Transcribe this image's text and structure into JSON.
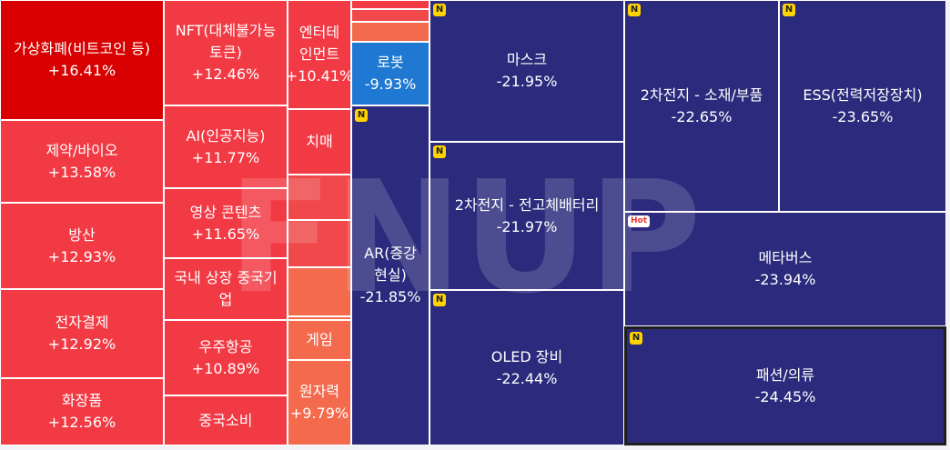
{
  "sectors": [
    {
      "name": "가상화폐(비트코인 등)",
      "pct": "+16.41%",
      "color": "#d80000"
    },
    {
      "name": "제약/바이오",
      "pct": "+13.58%",
      "color": "#f23a44"
    },
    {
      "name": "방산",
      "pct": "+12.93%",
      "color": "#f23a44"
    },
    {
      "name": "전자결제",
      "pct": "+12.92%",
      "color": "#f23a44"
    },
    {
      "name": "화장품",
      "pct": "+12.56%",
      "color": "#f23a44"
    },
    {
      "name": "NFT(대체불가능토큰)",
      "pct": "+12.46%",
      "color": "#f23a44"
    },
    {
      "name": "AI(인공지능)",
      "pct": "+11.77%",
      "color": "#f23a44"
    },
    {
      "name": "영상 콘텐츠",
      "pct": "+11.65%",
      "color": "#f23a44"
    },
    {
      "name": "국내 상장 중국기업",
      "pct": "",
      "color": "#f23a44"
    },
    {
      "name": "우주항공",
      "pct": "+10.89%",
      "color": "#f23a44"
    },
    {
      "name": "중국소비",
      "pct": "",
      "color": "#f23a44"
    },
    {
      "name": "엔터테인먼트",
      "pct": "+10.41%",
      "color": "#f23a44"
    },
    {
      "name": "치매",
      "pct": "",
      "color": "#f23a44"
    },
    {
      "name": "",
      "pct": "",
      "color": "#f0484b"
    },
    {
      "name": "",
      "pct": "",
      "color": "#f0484b"
    },
    {
      "name": "",
      "pct": "",
      "color": "#f46a4d"
    },
    {
      "name": "",
      "pct": "",
      "color": "#f46a4d"
    },
    {
      "name": "게임",
      "pct": "",
      "color": "#f46a4d"
    },
    {
      "name": "원자력",
      "pct": "+9.79%",
      "color": "#f46a4d"
    },
    {
      "name": "",
      "pct": "",
      "color": "#f23a44"
    },
    {
      "name": "",
      "pct": "",
      "color": "#f0484b"
    },
    {
      "name": "",
      "pct": "",
      "color": "#f46a4d"
    },
    {
      "name": "로봇",
      "pct": "-9.93%",
      "color": "#1f78d1"
    },
    {
      "name": "AR(증강현실)",
      "pct": "-21.85%",
      "color": "#2b2a7c"
    },
    {
      "name": "마스크",
      "pct": "-21.95%",
      "color": "#2b2a7c"
    },
    {
      "name": "2차전지 - 전고체배터리",
      "pct": "-21.97%",
      "color": "#2b2a7c"
    },
    {
      "name": "OLED 장비",
      "pct": "-22.44%",
      "color": "#2b2a7c"
    },
    {
      "name": "2차전지 - 소재/부품",
      "pct": "-22.65%",
      "color": "#2b2a7c"
    },
    {
      "name": "ESS(전력저장장치)",
      "pct": "-23.65%",
      "color": "#2b2a7c"
    },
    {
      "name": "메타버스",
      "pct": "-23.94%",
      "color": "#2b2a7c"
    },
    {
      "name": "패션/의류",
      "pct": "-24.45%",
      "color": "#2b2a7c"
    }
  ],
  "badges": {
    "new": "N",
    "hot": "Hot"
  },
  "watermark": "FNUP"
}
